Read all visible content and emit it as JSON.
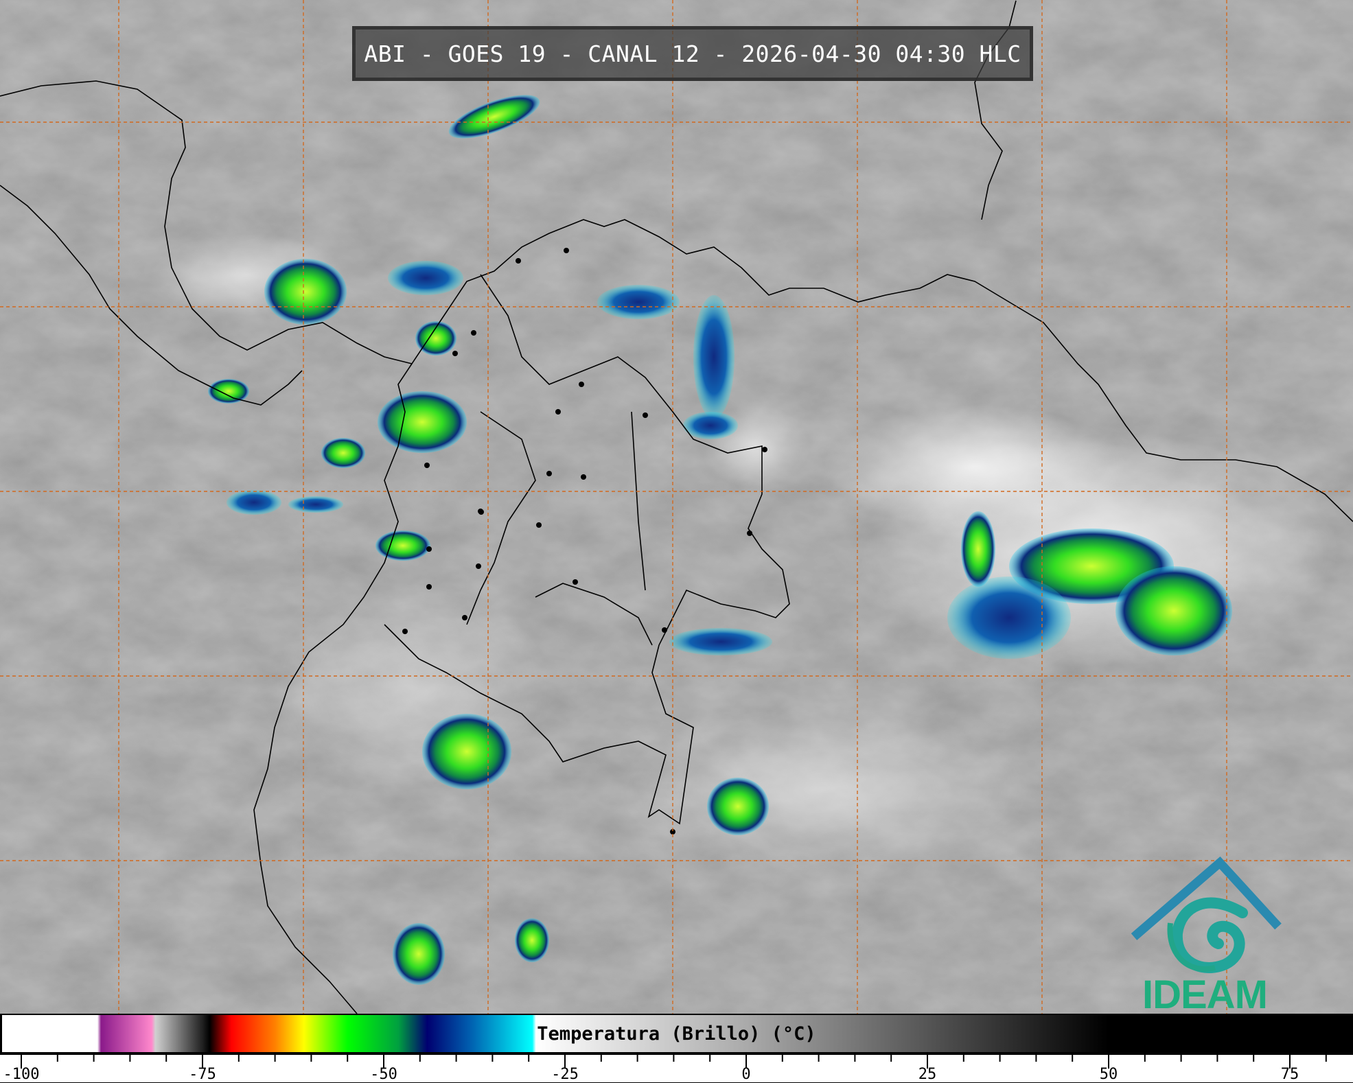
{
  "title": "ABI - GOES 19 - CANAL 12 - 2026-04-30 04:30 HLC",
  "logo": {
    "text": "IDEAM",
    "colors": [
      "#2f6fb5",
      "#1fae7e"
    ]
  },
  "map": {
    "grid_color": "#d2691e",
    "grid_style": "dashed",
    "coastline_color": "#000000",
    "background": "infrared brightness temperature imagery"
  },
  "colorbar": {
    "label": "Temperatura (Brillo) (°C)",
    "range": [
      -100,
      85
    ],
    "tick_labels": [
      "-100",
      "-75",
      "-50",
      "-25",
      "0",
      "25",
      "50",
      "75"
    ],
    "tick_values": [
      -100,
      -75,
      -50,
      -25,
      0,
      25,
      50,
      75
    ],
    "minor_step": 5,
    "stops": [
      {
        "value": -100,
        "color": "#ffffff"
      },
      {
        "value": -89.5,
        "color": "#ffffff"
      },
      {
        "value": -89,
        "color": "#8a1a8a"
      },
      {
        "value": -82,
        "color": "#ff88cc"
      },
      {
        "value": -81.5,
        "color": "#d0d0d0"
      },
      {
        "value": -75,
        "color": "#202020"
      },
      {
        "value": -74,
        "color": "#000000"
      },
      {
        "value": -71,
        "color": "#ff0000"
      },
      {
        "value": -65,
        "color": "#ff8000"
      },
      {
        "value": -61,
        "color": "#ffff00"
      },
      {
        "value": -55,
        "color": "#00ff00"
      },
      {
        "value": -48,
        "color": "#00a040"
      },
      {
        "value": -44,
        "color": "#000070"
      },
      {
        "value": -38,
        "color": "#0060b0"
      },
      {
        "value": -29.5,
        "color": "#00ffff"
      },
      {
        "value": -29,
        "color": "#ffffff"
      },
      {
        "value": 0,
        "color": "#aaaaaa"
      },
      {
        "value": 50,
        "color": "#000000"
      },
      {
        "value": 85,
        "color": "#000000"
      }
    ]
  }
}
